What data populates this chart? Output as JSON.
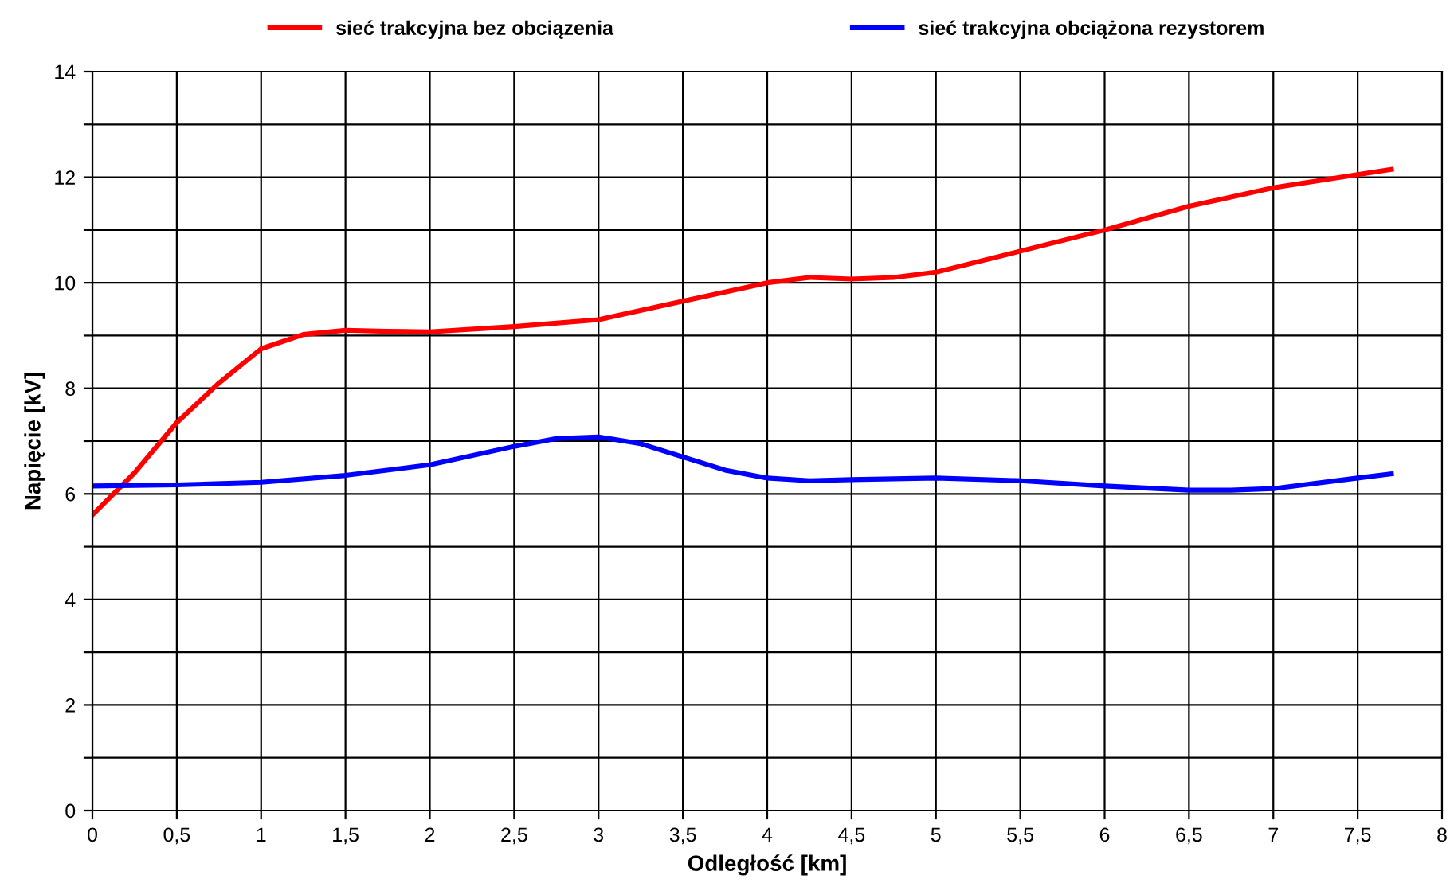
{
  "chart_data": {
    "type": "line",
    "xlabel": "Odległość [km]",
    "ylabel": "Napięcie [kV]",
    "xlim": [
      0,
      8
    ],
    "xticks": [
      0,
      {
        "value": 0.5,
        "label": "0,5"
      },
      1,
      {
        "value": 1.5,
        "label": "1,5"
      },
      2,
      {
        "value": 2.5,
        "label": "2,5"
      },
      3,
      {
        "value": 3.5,
        "label": "3,5"
      },
      4,
      {
        "value": 4.5,
        "label": "4,5"
      },
      5,
      {
        "value": 5.5,
        "label": "5,5"
      },
      6,
      {
        "value": 6.5,
        "label": "6,5"
      },
      7,
      {
        "value": 7.5,
        "label": "7,5"
      },
      8
    ],
    "ylim": [
      0,
      14
    ],
    "yticks": [
      0,
      {
        "value": 1,
        "label": null
      },
      2,
      {
        "value": 3,
        "label": null
      },
      4,
      {
        "value": 5,
        "label": null
      },
      6,
      {
        "value": 7,
        "label": null
      },
      8,
      {
        "value": 9,
        "label": null
      },
      10,
      {
        "value": 11,
        "label": null
      },
      12,
      {
        "value": 13,
        "label": null
      },
      14
    ],
    "grid": true,
    "legend": "top",
    "marker": "none",
    "line_style": "solid",
    "series": [
      {
        "name": "sieć trakcyjna bez obciązenia",
        "color": "#ff0000",
        "x": [
          0,
          0.25,
          0.5,
          0.75,
          1,
          1.25,
          1.5,
          1.75,
          2,
          2.5,
          3,
          3.5,
          4,
          4.25,
          4.5,
          4.75,
          5,
          5.5,
          6,
          6.5,
          7,
          7.5,
          7.7
        ],
        "values": [
          5.6,
          6.4,
          7.35,
          8.1,
          8.75,
          9.02,
          9.1,
          9.08,
          9.07,
          9.17,
          9.3,
          9.65,
          10.0,
          10.1,
          10.07,
          10.1,
          10.2,
          10.6,
          11.0,
          11.45,
          11.8,
          12.05,
          12.15
        ]
      },
      {
        "name": "sieć trakcyjna obciążona rezystorem",
        "color": "#0000ff",
        "x": [
          0,
          0.5,
          1,
          1.5,
          2,
          2.5,
          2.75,
          3,
          3.25,
          3.5,
          3.75,
          4,
          4.25,
          4.5,
          5,
          5.5,
          6,
          6.5,
          6.75,
          7,
          7.5,
          7.7
        ],
        "values": [
          6.15,
          6.17,
          6.22,
          6.35,
          6.55,
          6.9,
          7.05,
          7.08,
          6.95,
          6.7,
          6.45,
          6.3,
          6.25,
          6.27,
          6.3,
          6.25,
          6.15,
          6.07,
          6.07,
          6.1,
          6.3,
          6.38
        ]
      }
    ]
  }
}
